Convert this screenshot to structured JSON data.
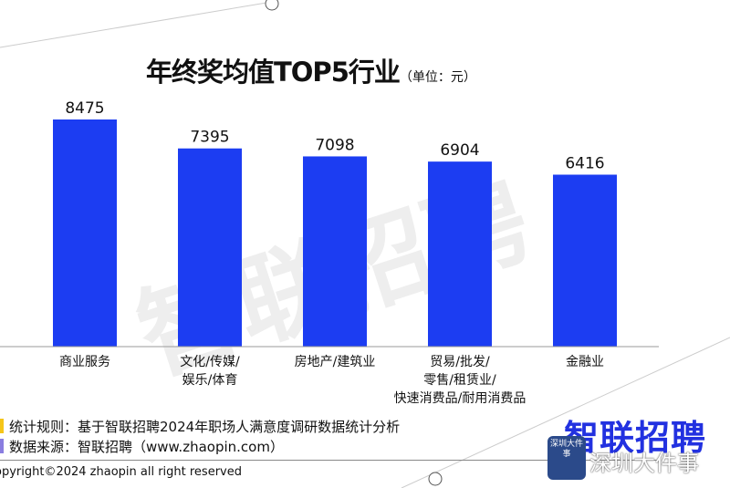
{
  "chart_data": {
    "type": "bar",
    "title": "年终奖均值TOP5行业",
    "unit": "（单位：元）",
    "categories": [
      [
        "商业服务"
      ],
      [
        "文化/传媒/",
        "娱乐/体育"
      ],
      [
        "房地产/建筑业"
      ],
      [
        "贸易/批发/",
        "零售/租赁业/",
        "快速消费品/耐用消费品"
      ],
      [
        "金融业"
      ]
    ],
    "values": [
      8475,
      7395,
      7098,
      6904,
      6416
    ],
    "ylim": [
      0,
      8475
    ],
    "grid": false,
    "bar_color": "#1c3df2"
  },
  "footer": {
    "rule": "统计规则：基于智联招聘2024年职场人满意度调研数据统计分析",
    "source": "数据来源：智联招聘（www.zhaopin.com）",
    "copyright": "opyright©2024 zhaopin all right reserved",
    "logo": "智联招聘",
    "watermark": "智联招聘",
    "badge": "深圳大件事",
    "badge_caption": "深圳大件事"
  }
}
